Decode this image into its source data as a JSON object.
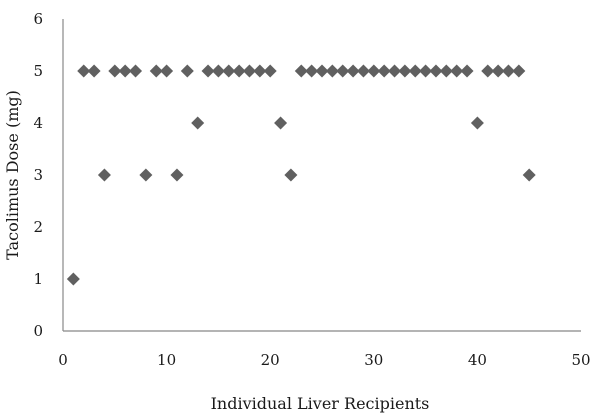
{
  "chart_data": {
    "type": "scatter",
    "title": "",
    "xlabel": "Individual Liver Recipients",
    "ylabel": "Tacolimus Dose (mg)",
    "xlim": [
      0,
      50
    ],
    "ylim": [
      0,
      6
    ],
    "xticks": [
      "0",
      "10",
      "20",
      "30",
      "40",
      "50"
    ],
    "yticks": [
      "0",
      "1",
      "2",
      "3",
      "4",
      "5",
      "6"
    ],
    "grid": false,
    "legend": "none",
    "marker": "diamond",
    "marker_color": "#606060",
    "axis_color": "#888888",
    "points": [
      {
        "x": 1,
        "y": 1
      },
      {
        "x": 2,
        "y": 5
      },
      {
        "x": 3,
        "y": 5
      },
      {
        "x": 4,
        "y": 3
      },
      {
        "x": 5,
        "y": 5
      },
      {
        "x": 6,
        "y": 5
      },
      {
        "x": 7,
        "y": 5
      },
      {
        "x": 8,
        "y": 3
      },
      {
        "x": 9,
        "y": 5
      },
      {
        "x": 10,
        "y": 5
      },
      {
        "x": 11,
        "y": 3
      },
      {
        "x": 12,
        "y": 5
      },
      {
        "x": 13,
        "y": 4
      },
      {
        "x": 14,
        "y": 5
      },
      {
        "x": 15,
        "y": 5
      },
      {
        "x": 16,
        "y": 5
      },
      {
        "x": 17,
        "y": 5
      },
      {
        "x": 18,
        "y": 5
      },
      {
        "x": 19,
        "y": 5
      },
      {
        "x": 20,
        "y": 5
      },
      {
        "x": 21,
        "y": 4
      },
      {
        "x": 22,
        "y": 3
      },
      {
        "x": 23,
        "y": 5
      },
      {
        "x": 24,
        "y": 5
      },
      {
        "x": 25,
        "y": 5
      },
      {
        "x": 26,
        "y": 5
      },
      {
        "x": 27,
        "y": 5
      },
      {
        "x": 28,
        "y": 5
      },
      {
        "x": 29,
        "y": 5
      },
      {
        "x": 30,
        "y": 5
      },
      {
        "x": 31,
        "y": 5
      },
      {
        "x": 32,
        "y": 5
      },
      {
        "x": 33,
        "y": 5
      },
      {
        "x": 34,
        "y": 5
      },
      {
        "x": 35,
        "y": 5
      },
      {
        "x": 36,
        "y": 5
      },
      {
        "x": 37,
        "y": 5
      },
      {
        "x": 38,
        "y": 5
      },
      {
        "x": 39,
        "y": 5
      },
      {
        "x": 40,
        "y": 4
      },
      {
        "x": 41,
        "y": 5
      },
      {
        "x": 42,
        "y": 5
      },
      {
        "x": 43,
        "y": 5
      },
      {
        "x": 44,
        "y": 5
      },
      {
        "x": 45,
        "y": 3
      }
    ]
  }
}
